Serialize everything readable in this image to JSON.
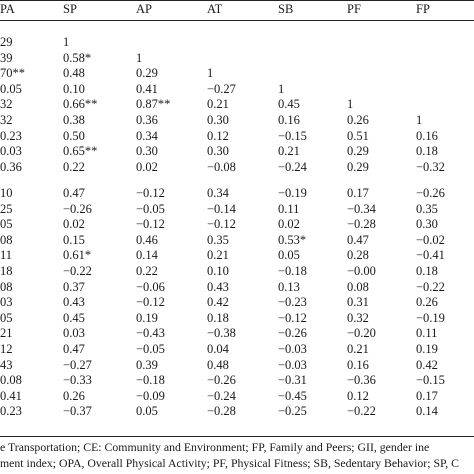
{
  "headers": [
    "PA",
    "SP",
    "AP",
    "AT",
    "SB",
    "PF",
    "FP"
  ],
  "group1": [
    [
      "29",
      "1",
      "",
      "",
      "",
      "",
      ""
    ],
    [
      "39",
      "0.58*",
      "1",
      "",
      "",
      "",
      ""
    ],
    [
      "70**",
      "0.48",
      "0.29",
      "1",
      "",
      "",
      ""
    ],
    [
      "0.05",
      "0.10",
      "0.41",
      "−0.27",
      "1",
      "",
      ""
    ],
    [
      "32",
      "0.66**",
      "0.87**",
      "0.21",
      "0.45",
      "1",
      ""
    ],
    [
      "32",
      "0.38",
      "0.36",
      "0.30",
      "0.16",
      "0.26",
      "1"
    ],
    [
      "0.23",
      "0.50",
      "0.34",
      "0.12",
      "−0.15",
      "0.51",
      "0.16"
    ],
    [
      "0.03",
      "0.65**",
      "0.30",
      "0.30",
      "0.21",
      "0.29",
      "0.18"
    ],
    [
      "0.36",
      "0.22",
      "0.02",
      "−0.08",
      "−0.24",
      "0.29",
      "−0.32"
    ]
  ],
  "group2": [
    [
      "10",
      "0.47",
      "−0.12",
      "0.34",
      "−0.19",
      "0.17",
      "−0.26"
    ],
    [
      "25",
      "−0.26",
      "−0.05",
      "−0.14",
      "0.11",
      "−0.34",
      "0.35"
    ],
    [
      "05",
      "0.02",
      "−0.12",
      "−0.12",
      "0.02",
      "−0.28",
      "0.30"
    ],
    [
      "08",
      "0.15",
      "0.46",
      "0.35",
      "0.53*",
      "0.47",
      "−0.02"
    ],
    [
      "11",
      "0.61*",
      "0.14",
      "0.21",
      "0.05",
      "0.28",
      "−0.41"
    ],
    [
      "18",
      "−0.22",
      "0.22",
      "0.10",
      "−0.18",
      "−0.00",
      "0.18"
    ],
    [
      "08",
      "0.37",
      "−0.06",
      "0.43",
      "0.13",
      "0.08",
      "−0.22"
    ],
    [
      "03",
      "0.43",
      "−0.12",
      "0.42",
      "−0.23",
      "0.31",
      "0.26"
    ],
    [
      "05",
      "0.45",
      "0.19",
      "0.18",
      "−0.12",
      "0.32",
      "−0.19"
    ],
    [
      "21",
      "0.03",
      "−0.43",
      "−0.38",
      "−0.26",
      "−0.20",
      "0.11"
    ],
    [
      "12",
      "0.47",
      "−0.05",
      "0.04",
      "−0.03",
      "0.21",
      "0.19"
    ],
    [
      "43",
      "−0.27",
      "0.39",
      "0.48",
      "−0.03",
      "0.16",
      "0.42"
    ],
    [
      "0.08",
      "−0.33",
      "−0.18",
      "−0.26",
      "−0.31",
      "−0.36",
      "−0.15"
    ],
    [
      "0.41",
      "0.26",
      "−0.09",
      "−0.24",
      "−0.45",
      "0.12",
      "0.17"
    ],
    [
      "0.23",
      "−0.37",
      "0.05",
      "−0.28",
      "−0.25",
      "−0.22",
      "0.14"
    ]
  ],
  "footnotes": [
    "e Transportation; CE: Community and Environment; FP, Family and Peers; GII, gender ine",
    "ment index; OPA, Overall Physical Activity; PF, Physical Fitness; SB, Sedentary Behavior; SP, C"
  ]
}
